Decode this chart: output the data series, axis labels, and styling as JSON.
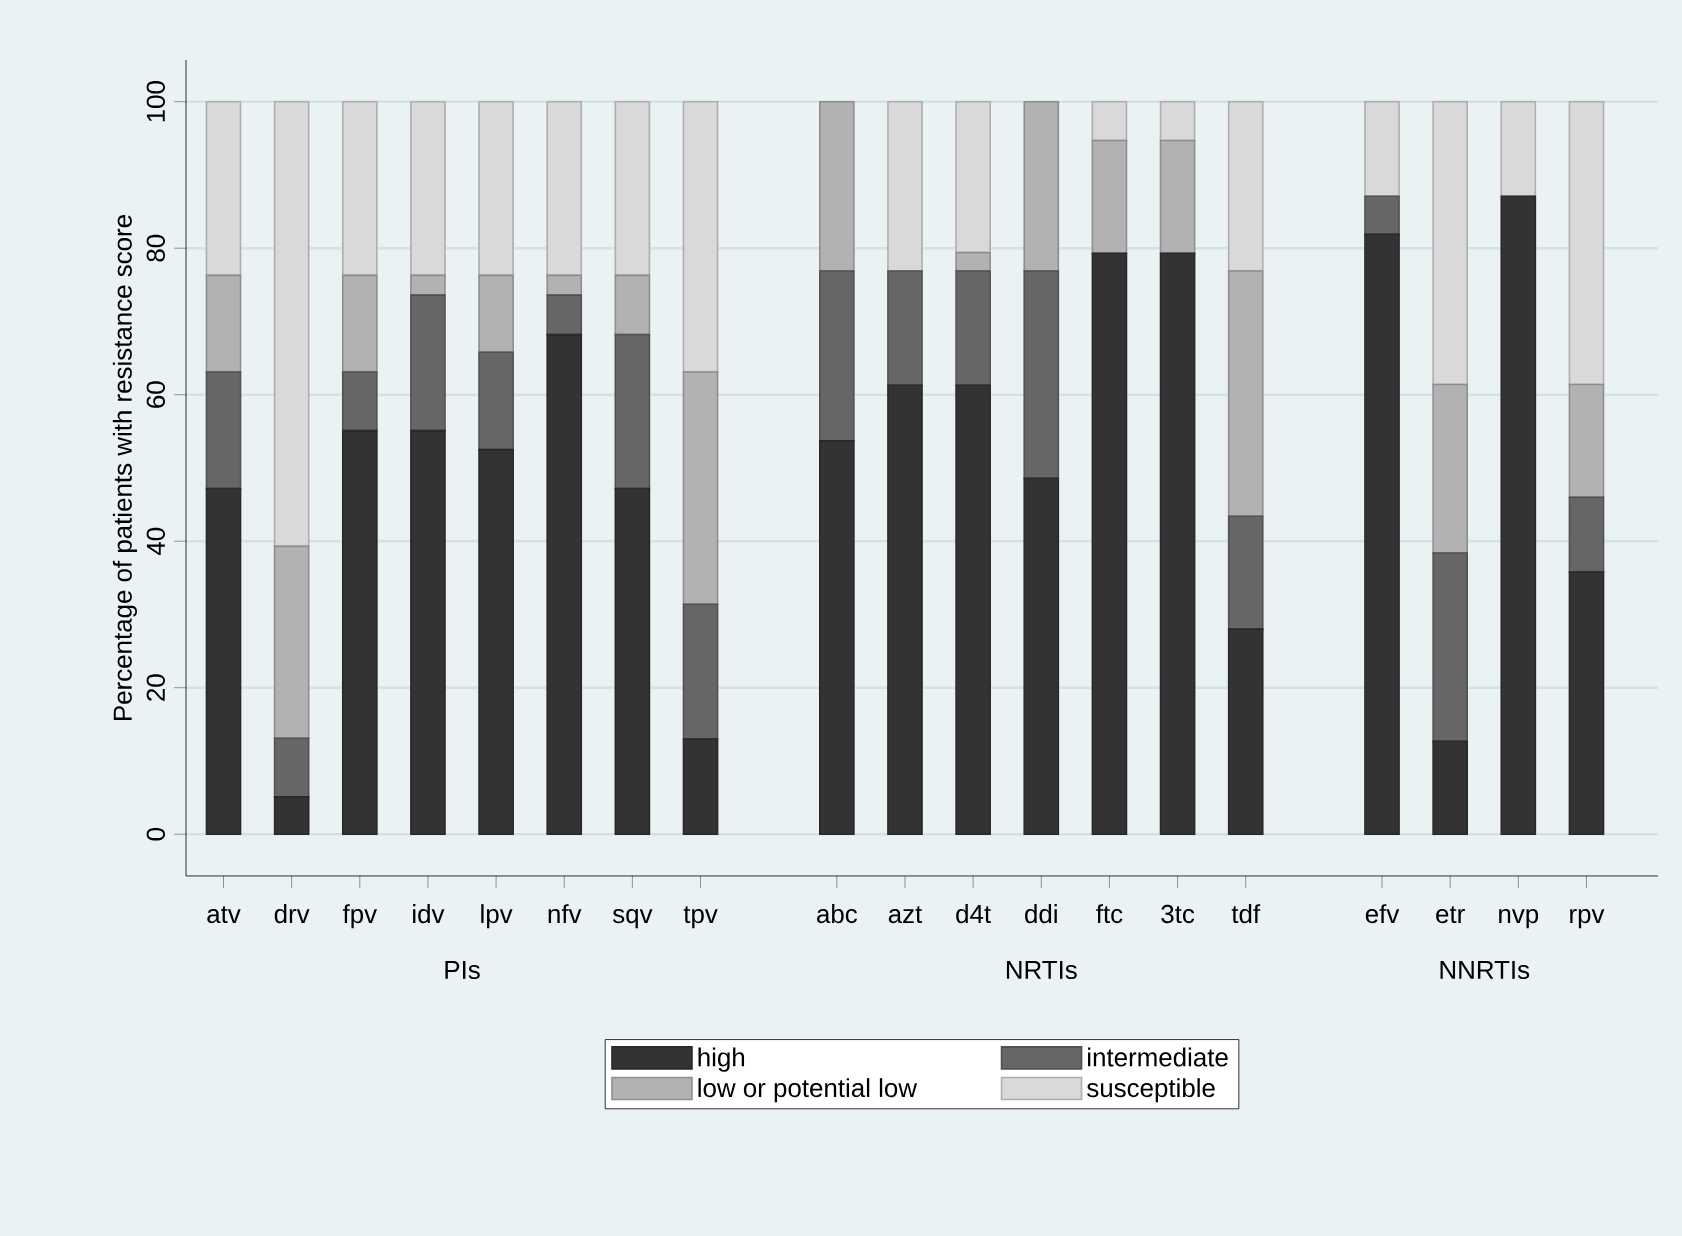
{
  "chart_data": {
    "type": "bar",
    "stacked": true,
    "ylabel": "Percentage of patients with resistance score",
    "categories": [
      "atv",
      "drv",
      "fpv",
      "idv",
      "lpv",
      "nfv",
      "sqv",
      "tpv",
      null,
      "abc",
      "azt",
      "d4t",
      "ddi",
      "ftc",
      "3tc",
      "tdf",
      null,
      "efv",
      "etr",
      "nvp",
      "rpv"
    ],
    "series": [
      {
        "name": "high",
        "color": "#333333",
        "values": [
          47.2,
          5.1,
          55.1,
          55.1,
          52.5,
          68.2,
          47.2,
          13.0,
          null,
          53.7,
          61.3,
          61.3,
          48.6,
          79.3,
          79.3,
          28.0,
          null,
          81.9,
          12.7,
          87.1,
          35.8
        ]
      },
      {
        "name": "intermediate",
        "color": "#666666",
        "values": [
          15.9,
          8.0,
          8.0,
          18.5,
          13.3,
          5.4,
          21.0,
          18.4,
          null,
          23.2,
          15.6,
          15.6,
          28.3,
          0,
          0,
          15.4,
          null,
          5.2,
          25.7,
          0,
          10.2
        ]
      },
      {
        "name": "low or potential low",
        "color": "#b2b2b2",
        "values": [
          13.2,
          26.2,
          13.2,
          2.7,
          10.5,
          2.7,
          8.1,
          31.7,
          null,
          23.1,
          0,
          2.5,
          23.1,
          15.4,
          15.4,
          33.5,
          null,
          0,
          23.0,
          0,
          15.4
        ]
      },
      {
        "name": "susceptible",
        "color": "#d9d9d9",
        "values": [
          23.7,
          60.7,
          23.7,
          23.7,
          23.7,
          23.7,
          23.7,
          36.9,
          null,
          0,
          23.1,
          20.6,
          0,
          5.3,
          5.3,
          23.1,
          null,
          12.9,
          38.6,
          12.9,
          38.6
        ]
      }
    ],
    "ylim": [
      -5.7,
      105.7
    ],
    "yticks": [
      0,
      20,
      40,
      60,
      80,
      100
    ],
    "grid": "y",
    "legend": "bottom",
    "annotations": [
      "PIs",
      "NRTIs",
      "NNRTIs"
    ]
  }
}
